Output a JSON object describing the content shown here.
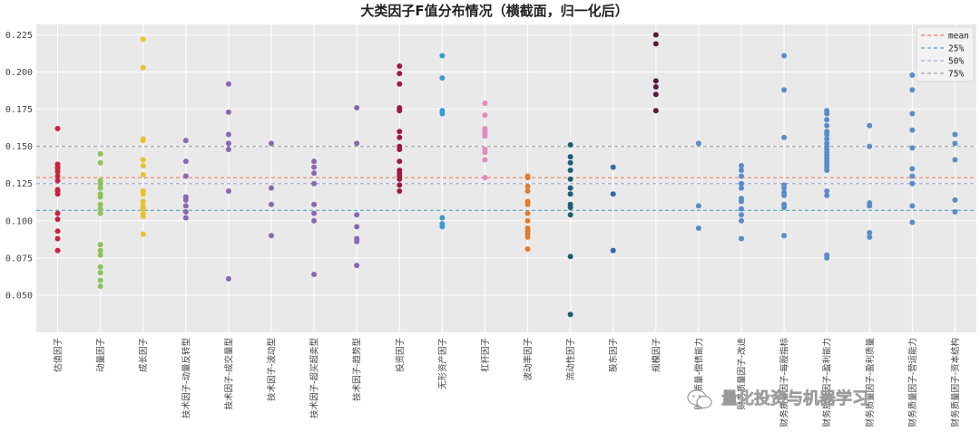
{
  "chart_data": {
    "type": "scatter",
    "title": "大类因子F值分布情况（横截面，归一化后）",
    "xlabel": "",
    "ylabel": "",
    "ylim": [
      0.025,
      0.232
    ],
    "yticks": [
      0.05,
      0.075,
      0.1,
      0.125,
      0.15,
      0.175,
      0.2,
      0.225
    ],
    "ytick_labels": [
      "0.050",
      "0.075",
      "0.100",
      "0.125",
      "0.150",
      "0.175",
      "0.200",
      "0.225"
    ],
    "grid": true,
    "legend_position": "top-right",
    "categories": [
      "估值因子",
      "动量因子",
      "成长因子",
      "技术因子-动量反转型",
      "技术因子-成交量型",
      "技术因子-波动型",
      "技术因子-超买超卖型",
      "技术因子-趋势型",
      "投资因子",
      "无形资产因子",
      "杠杆因子",
      "波动率因子",
      "流动性因子",
      "股东因子",
      "规模因子",
      "财务质量-偿债能力",
      "财务质量因子-改进",
      "财务质量因子-每股指标",
      "财务质量因子-盈利能力",
      "财务质量因子-盈利质量",
      "财务质量因子-营运能力",
      "财务质量因子-资本结构"
    ],
    "series": [
      {
        "color": "#c8243f",
        "values": [
          0.162,
          0.138,
          0.136,
          0.135,
          0.133,
          0.13,
          0.127,
          0.121,
          0.12,
          0.118,
          0.105,
          0.101,
          0.093,
          0.088,
          0.08
        ]
      },
      {
        "color": "#8ec25a",
        "values": [
          0.145,
          0.139,
          0.127,
          0.125,
          0.122,
          0.118,
          0.116,
          0.111,
          0.108,
          0.105,
          0.084,
          0.08,
          0.077,
          0.069,
          0.065,
          0.06,
          0.056
        ]
      },
      {
        "color": "#e8c22c",
        "values": [
          0.222,
          0.203,
          0.155,
          0.154,
          0.141,
          0.137,
          0.131,
          0.12,
          0.118,
          0.113,
          0.11,
          0.108,
          0.105,
          0.103,
          0.091
        ]
      },
      {
        "color": "#8c67b0",
        "values": [
          0.154,
          0.14,
          0.13,
          0.116,
          0.114,
          0.11,
          0.106,
          0.102
        ]
      },
      {
        "color": "#8c67b0",
        "values": [
          0.192,
          0.173,
          0.158,
          0.152,
          0.148,
          0.12,
          0.061
        ]
      },
      {
        "color": "#8c67b0",
        "values": [
          0.152,
          0.122,
          0.111,
          0.09
        ]
      },
      {
        "color": "#8c67b0",
        "values": [
          0.14,
          0.136,
          0.132,
          0.125,
          0.111,
          0.105,
          0.1,
          0.064
        ]
      },
      {
        "color": "#8c67b0",
        "values": [
          0.176,
          0.152,
          0.104,
          0.096,
          0.088,
          0.086,
          0.07
        ]
      },
      {
        "color": "#9e1c3e",
        "values": [
          0.204,
          0.199,
          0.192,
          0.176,
          0.175,
          0.174,
          0.16,
          0.156,
          0.15,
          0.148,
          0.14,
          0.134,
          0.132,
          0.13,
          0.128,
          0.124,
          0.12
        ]
      },
      {
        "color": "#3b9ad0",
        "values": [
          0.211,
          0.196,
          0.174,
          0.172,
          0.102,
          0.098,
          0.096
        ]
      },
      {
        "color": "#e08cc0",
        "values": [
          0.179,
          0.171,
          0.162,
          0.16,
          0.158,
          0.157,
          0.148,
          0.146,
          0.141,
          0.129
        ]
      },
      {
        "color": "#e07c2c",
        "values": [
          0.13,
          0.129,
          0.123,
          0.12,
          0.113,
          0.111,
          0.105,
          0.1,
          0.095,
          0.093,
          0.091,
          0.089,
          0.081
        ]
      },
      {
        "color": "#1f5e72",
        "values": [
          0.151,
          0.143,
          0.139,
          0.134,
          0.128,
          0.122,
          0.118,
          0.111,
          0.109,
          0.104,
          0.076,
          0.037
        ]
      },
      {
        "color": "#3168a6",
        "values": [
          0.136,
          0.118,
          0.08
        ]
      },
      {
        "color": "#5a1840",
        "values": [
          0.225,
          0.219,
          0.194,
          0.19,
          0.185,
          0.174
        ]
      },
      {
        "color": "#5a8cc8",
        "values": [
          0.152,
          0.11,
          0.095
        ]
      },
      {
        "color": "#5a8cc8",
        "values": [
          0.137,
          0.134,
          0.13,
          0.125,
          0.122,
          0.115,
          0.113,
          0.108,
          0.104,
          0.1,
          0.088
        ]
      },
      {
        "color": "#5a8cc8",
        "values": [
          0.211,
          0.188,
          0.156,
          0.124,
          0.122,
          0.119,
          0.117,
          0.111,
          0.109,
          0.09
        ]
      },
      {
        "color": "#5a8cc8",
        "values": [
          0.174,
          0.172,
          0.168,
          0.164,
          0.16,
          0.158,
          0.155,
          0.152,
          0.15,
          0.148,
          0.146,
          0.144,
          0.142,
          0.14,
          0.138,
          0.136,
          0.134,
          0.12,
          0.117,
          0.077,
          0.075
        ]
      },
      {
        "color": "#5a8cc8",
        "values": [
          0.164,
          0.15,
          0.112,
          0.11,
          0.092,
          0.089
        ]
      },
      {
        "color": "#5a8cc8",
        "values": [
          0.198,
          0.188,
          0.172,
          0.161,
          0.149,
          0.135,
          0.13,
          0.125,
          0.11,
          0.099
        ]
      },
      {
        "color": "#5a8cc8",
        "values": [
          0.158,
          0.152,
          0.141,
          0.114,
          0.106
        ]
      }
    ],
    "reference_lines": [
      {
        "name": "mean",
        "value": 0.129,
        "color": "#f08060"
      },
      {
        "name": "25%",
        "value": 0.107,
        "color": "#50a8c0"
      },
      {
        "name": "50%",
        "value": 0.125,
        "color": "#a8a8e0"
      },
      {
        "name": "75%",
        "value": 0.15,
        "color": "#a0a0a0"
      }
    ]
  },
  "watermark": "量化投资与机器学习"
}
